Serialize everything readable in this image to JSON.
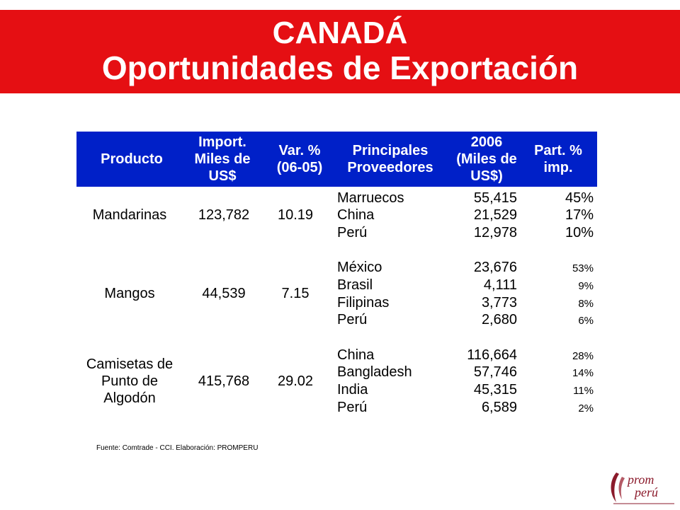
{
  "title": {
    "line1": "CANADÁ",
    "line2": "Oportunidades de Exportación"
  },
  "table": {
    "headers": {
      "producto": "Producto",
      "import": "Import.\nMiles de\nUS$",
      "var": "Var. %\n(06-05)",
      "proveedores": "Principales\nProveedores",
      "y2006": "2006\n(Miles de\nUS$)",
      "part": "Part. %\nimp."
    },
    "rows": [
      {
        "producto": "Mandarinas",
        "import": "123,782",
        "var": "10.19",
        "suppliers": [
          {
            "name": "Marruecos",
            "value": "55,415",
            "pct": "45%"
          },
          {
            "name": "China",
            "value": "21,529",
            "pct": "17%"
          },
          {
            "name": "Perú",
            "value": "12,978",
            "pct": "10%"
          }
        ]
      },
      {
        "producto": "Mangos",
        "import": "44,539",
        "var": "7.15",
        "suppliers": [
          {
            "name": "México",
            "value": "23,676",
            "pct": "53%"
          },
          {
            "name": "Brasil",
            "value": "4,111",
            "pct": "9%"
          },
          {
            "name": "Filipinas",
            "value": "3,773",
            "pct": "8%"
          },
          {
            "name": "Perú",
            "value": "2,680",
            "pct": "6%"
          }
        ]
      },
      {
        "producto": "Camisetas de\nPunto de\nAlgodón",
        "import": "415,768",
        "var": "29.02",
        "suppliers": [
          {
            "name": "China",
            "value": "116,664",
            "pct": "28%"
          },
          {
            "name": "Bangladesh",
            "value": "57,746",
            "pct": "14%"
          },
          {
            "name": "India",
            "value": "45,315",
            "pct": "11%"
          },
          {
            "name": "Perú",
            "value": "6,589",
            "pct": "2%"
          }
        ]
      }
    ]
  },
  "source": "Fuente: Comtrade - CCI.  Elaboración: PROMPERU",
  "logo": {
    "line1": "prom",
    "line2": "perú"
  },
  "colors": {
    "banner": "#e50f13",
    "header": "#0020c8",
    "logo": "#8b1a2b"
  }
}
